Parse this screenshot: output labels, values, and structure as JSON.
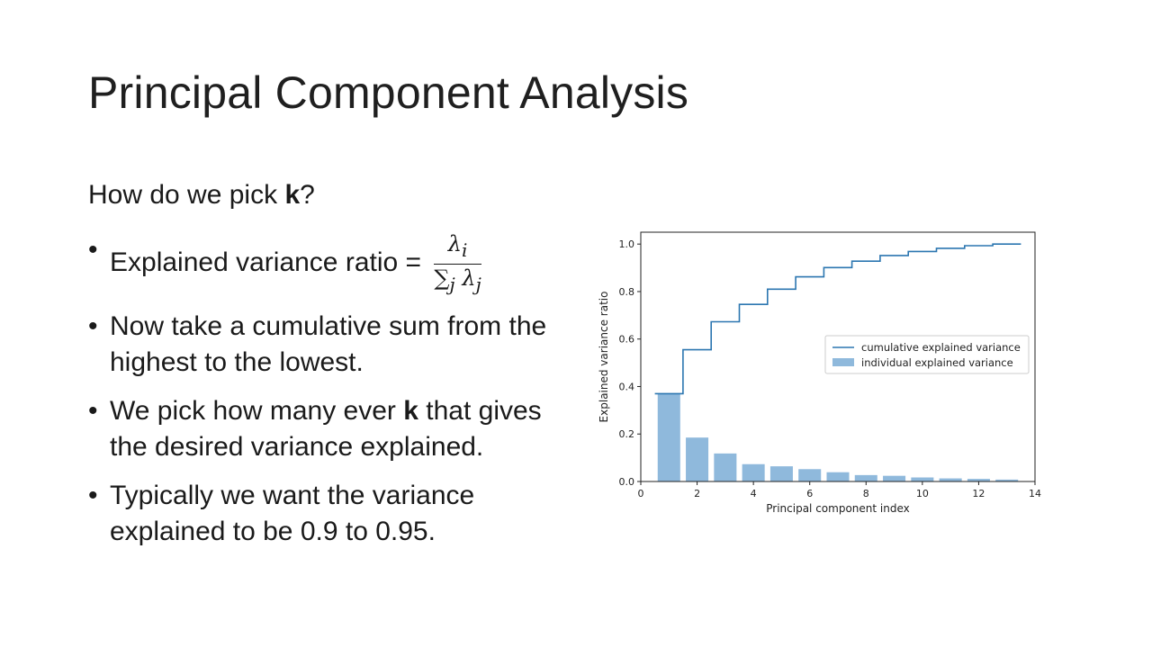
{
  "slide": {
    "title": "Principal Component Analysis",
    "question_prefix": "How do we pick ",
    "question_bold": "k",
    "question_suffix": "?",
    "bullets": {
      "b1_text": "Explained variance ratio = ",
      "b1_num": "λ",
      "b1_num_sub": "i",
      "b1_den": "∑",
      "b1_den_sub": "j",
      "b1_den_lambda": "λ",
      "b1_den_lambda_sub": "j",
      "b2_text": "Now take a cumulative sum from the highest to the lowest.",
      "b3_prefix": "We pick how many ever ",
      "b3_bold": "k",
      "b3_suffix": " that gives the desired variance explained.",
      "b4_text": "Typically we want the variance explained to be 0.9 to 0.95."
    }
  },
  "chart_data": {
    "type": "bar",
    "xlabel": "Principal component index",
    "ylabel": "Explained variance ratio",
    "xlim": [
      0,
      14
    ],
    "ylim": [
      0,
      1.05
    ],
    "xticks": [
      0,
      2,
      4,
      6,
      8,
      10,
      12,
      14
    ],
    "yticks": [
      0.0,
      0.2,
      0.4,
      0.6,
      0.8,
      1.0
    ],
    "xtick_labels": [
      "0",
      "2",
      "4",
      "6",
      "8",
      "10",
      "12",
      "14"
    ],
    "ytick_labels": [
      "0.0",
      "0.2",
      "0.4",
      "0.6",
      "0.8",
      "1.0"
    ],
    "categories": [
      1,
      2,
      3,
      4,
      5,
      6,
      7,
      8,
      9,
      10,
      11,
      12,
      13
    ],
    "series": [
      {
        "name": "individual explained variance",
        "type": "bar",
        "values": [
          0.37,
          0.185,
          0.118,
          0.073,
          0.064,
          0.052,
          0.039,
          0.027,
          0.024,
          0.017,
          0.013,
          0.011,
          0.008
        ]
      },
      {
        "name": "cumulative explained variance",
        "type": "step",
        "values": [
          0.37,
          0.555,
          0.673,
          0.746,
          0.81,
          0.862,
          0.901,
          0.928,
          0.952,
          0.969,
          0.982,
          0.993,
          1.0
        ]
      }
    ],
    "legend": "center-right",
    "grid": false,
    "colors": {
      "bar": "#8fb9dc",
      "line": "#2b76b0"
    }
  }
}
